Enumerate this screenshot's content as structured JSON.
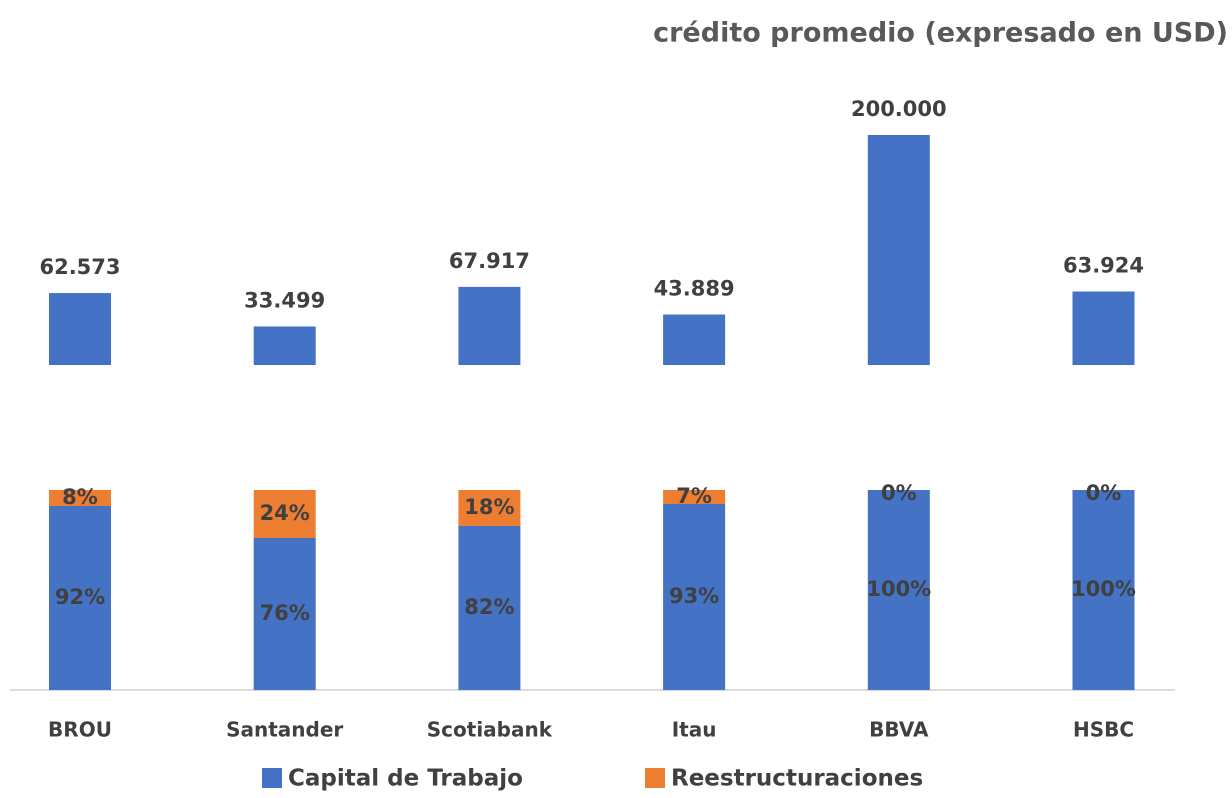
{
  "chart_data": [
    {
      "type": "bar",
      "title": "crédito promedio (expresado en USD)",
      "values": [
        62573,
        33499,
        67917,
        43889,
        200000,
        63924
      ],
      "value_labels": [
        "62.573",
        "33.499",
        "67.917",
        "43.889",
        "200.000",
        "63.924"
      ],
      "color": "#4472c4"
    },
    {
      "type": "stacked_bar",
      "categories": [
        "BROU",
        "Santander",
        "Scotiabank",
        "Itau",
        "BBVA",
        "HSBC"
      ],
      "series": [
        {
          "name": "Capital de Trabajo",
          "color": "#4472c4",
          "values": [
            92,
            76,
            82,
            93,
            100,
            100
          ],
          "value_labels": [
            "92%",
            "76%",
            "82%",
            "93%",
            "100%",
            "100%"
          ]
        },
        {
          "name": "Reestructuraciones",
          "color": "#ed7d31",
          "values": [
            8,
            24,
            18,
            7,
            0,
            0
          ],
          "value_labels": [
            "8%",
            "24%",
            "18%",
            "7%",
            "0%",
            "0%"
          ]
        }
      ],
      "legend": "bottom"
    }
  ]
}
